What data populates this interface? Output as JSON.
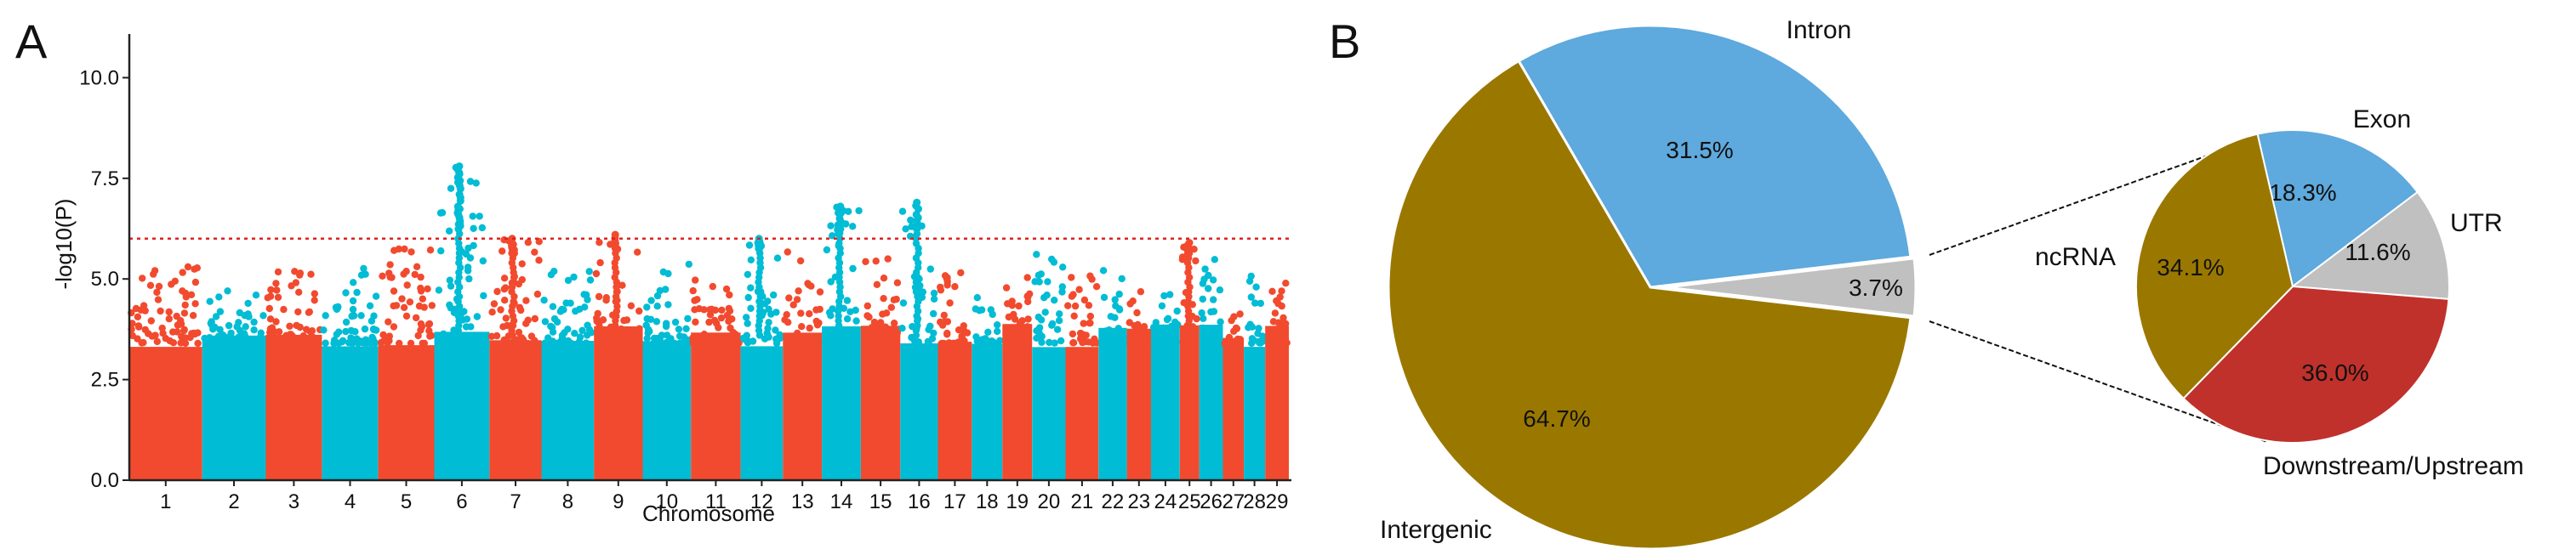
{
  "chart_data": [
    {
      "panel": "A",
      "type": "scatter",
      "subtype": "manhattan",
      "ylabel": "-log10(P)",
      "xlabel": "Chromosome",
      "ylim": [
        0,
        11
      ],
      "yticks": [
        0.0,
        2.5,
        5.0,
        7.5,
        10.0
      ],
      "ytick_labels": [
        "0.0",
        "2.5",
        "5.0",
        "7.5",
        "10.0"
      ],
      "threshold": 6.0,
      "threshold_color": "#e02020",
      "colors": [
        "#f24a2e",
        "#00bcd4"
      ],
      "chromosomes": [
        {
          "label": "1",
          "size": 157,
          "max": 5.3,
          "peaks": []
        },
        {
          "label": "2",
          "size": 137,
          "max": 4.8,
          "peaks": []
        },
        {
          "label": "3",
          "size": 121,
          "max": 5.4,
          "peaks": []
        },
        {
          "label": "4",
          "size": 121,
          "max": 5.3,
          "peaks": []
        },
        {
          "label": "5",
          "size": 121,
          "max": 5.8,
          "peaks": []
        },
        {
          "label": "6",
          "size": 119,
          "max": 7.9,
          "peaks": [
            7.8,
            7.6,
            7.4,
            7.1,
            6.8,
            6.6,
            6.4
          ]
        },
        {
          "label": "7",
          "size": 112,
          "max": 6.0,
          "peaks": [
            6.0,
            5.8
          ]
        },
        {
          "label": "8",
          "size": 113,
          "max": 5.3,
          "peaks": []
        },
        {
          "label": "9",
          "size": 105,
          "max": 6.1,
          "peaks": [
            6.1,
            5.9
          ]
        },
        {
          "label": "10",
          "size": 104,
          "max": 5.5,
          "peaks": []
        },
        {
          "label": "11",
          "size": 107,
          "max": 5.0,
          "peaks": []
        },
        {
          "label": "12",
          "size": 91,
          "max": 6.0,
          "peaks": [
            6.0,
            5.9
          ]
        },
        {
          "label": "13",
          "size": 84,
          "max": 5.8,
          "peaks": []
        },
        {
          "label": "14",
          "size": 84,
          "max": 6.8,
          "peaks": [
            6.8,
            6.5,
            6.3
          ]
        },
        {
          "label": "15",
          "size": 85,
          "max": 5.5,
          "peaks": []
        },
        {
          "label": "16",
          "size": 81,
          "max": 6.9,
          "peaks": [
            6.9,
            6.6,
            6.4
          ]
        },
        {
          "label": "17",
          "size": 73,
          "max": 5.2,
          "peaks": []
        },
        {
          "label": "18",
          "size": 66,
          "max": 4.7,
          "peaks": []
        },
        {
          "label": "19",
          "size": 64,
          "max": 5.1,
          "peaks": []
        },
        {
          "label": "20",
          "size": 72,
          "max": 5.8,
          "peaks": []
        },
        {
          "label": "21",
          "size": 71,
          "max": 5.2,
          "peaks": []
        },
        {
          "label": "22",
          "size": 61,
          "max": 5.3,
          "peaks": []
        },
        {
          "label": "23",
          "size": 52,
          "max": 4.9,
          "peaks": []
        },
        {
          "label": "24",
          "size": 62,
          "max": 4.8,
          "peaks": []
        },
        {
          "label": "25",
          "size": 42,
          "max": 5.9,
          "peaks": [
            5.9,
            5.8
          ]
        },
        {
          "label": "26",
          "size": 51,
          "max": 5.5,
          "peaks": []
        },
        {
          "label": "27",
          "size": 45,
          "max": 4.6,
          "peaks": []
        },
        {
          "label": "28",
          "size": 46,
          "max": 5.2,
          "peaks": []
        },
        {
          "label": "29",
          "size": 51,
          "max": 4.9,
          "peaks": []
        }
      ]
    },
    {
      "panel": "B",
      "type": "pie",
      "slices": [
        {
          "label": "Intron",
          "value": 31.5,
          "text": "31.5%",
          "color": "#5ea9dd"
        },
        {
          "label": "",
          "value": 3.7,
          "text": "3.7%",
          "color": "#c0c0c0"
        },
        {
          "label": "Intergenic",
          "value": 64.7,
          "text": "64.7%",
          "color": "#9a7800"
        }
      ]
    },
    {
      "panel": "B-inset",
      "type": "pie",
      "slices": [
        {
          "label": "Exon",
          "value": 18.3,
          "text": "18.3%",
          "color": "#5ea9dd"
        },
        {
          "label": "UTR",
          "value": 11.6,
          "text": "11.6%",
          "color": "#c0c0c0"
        },
        {
          "label": "Downstream/Upstream",
          "value": 36.0,
          "text": "36.0%",
          "color": "#c0312b"
        },
        {
          "label": "ncRNA",
          "value": 34.1,
          "text": "34.1%",
          "color": "#9a7800"
        }
      ]
    }
  ],
  "panels": {
    "a_label": "A",
    "b_label": "B"
  }
}
